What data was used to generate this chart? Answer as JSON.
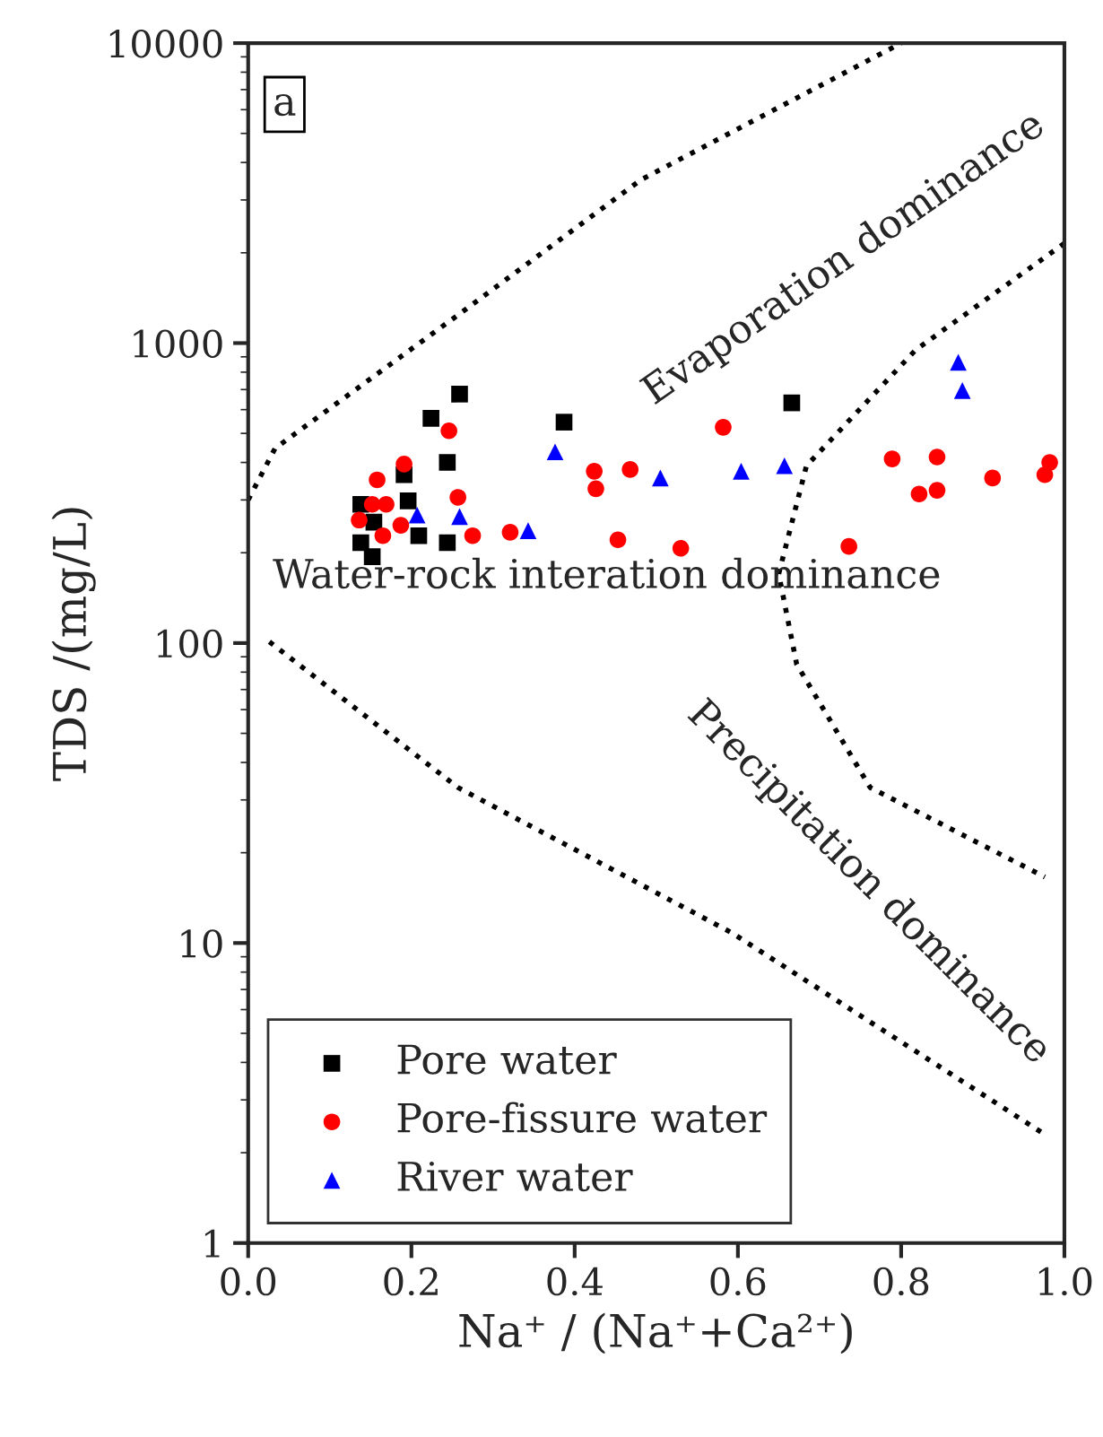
{
  "chart_data": {
    "type": "scatter",
    "xlabel": "Na⁺ / (Na⁺+Ca²⁺)",
    "ylabel": "TDS /(mg/L)",
    "xlim": [
      0,
      1
    ],
    "ylim": [
      1,
      10000
    ],
    "log": "y",
    "grid": false,
    "legend": "bottom left",
    "xticks": [
      {
        "value": 0,
        "label": "0.0"
      },
      {
        "value": 0.2,
        "label": "0.2"
      },
      {
        "value": 0.4,
        "label": "0.4"
      },
      {
        "value": 0.6,
        "label": "0.6"
      },
      {
        "value": 0.8,
        "label": "0.8"
      },
      {
        "value": 1,
        "label": "1.0"
      }
    ],
    "yticks": [
      1,
      10,
      100,
      1000,
      10000
    ],
    "annotations": [
      "a",
      "Evaporation dominance",
      "Water-rock interation dominance",
      "Precipitation dominance"
    ],
    "series": [
      {
        "name": "Pore water",
        "color": "#000000",
        "marker": "square",
        "x": [
          0.259,
          0.224,
          0.244,
          0.191,
          0.196,
          0.138,
          0.154,
          0.209,
          0.138,
          0.152,
          0.244,
          0.387,
          0.666
        ],
        "values": [
          676,
          561,
          400,
          364,
          298,
          290,
          253,
          228,
          216,
          194,
          216,
          545,
          632
        ]
      },
      {
        "name": "Pore-fissure water",
        "color": "#ff0000",
        "marker": "circle",
        "x": [
          0.246,
          0.191,
          0.158,
          0.257,
          0.152,
          0.169,
          0.136,
          0.165,
          0.187,
          0.275,
          0.321,
          0.582,
          0.424,
          0.426,
          0.468,
          0.453,
          0.53,
          0.736,
          0.789,
          0.844,
          0.822,
          0.844,
          0.912,
          0.976,
          0.982
        ],
        "values": [
          510,
          395,
          350,
          306,
          290,
          290,
          257,
          228,
          247,
          228,
          234,
          524,
          374,
          327,
          379,
          221,
          207,
          210,
          411,
          417,
          314,
          323,
          355,
          364,
          400
        ]
      },
      {
        "name": "River water",
        "color": "#0000ff",
        "marker": "triangle",
        "x": [
          0.207,
          0.259,
          0.343,
          0.376,
          0.505,
          0.604,
          0.657,
          0.87,
          0.875
        ],
        "values": [
          267,
          264,
          237,
          434,
          355,
          374,
          390,
          863,
          695
        ]
      },
      {
        "type": "line",
        "color": "#000000",
        "marker": "none",
        "line_style": "dotted",
        "x": [
          0,
          0.033,
          0.257,
          0.481,
          0.8
        ],
        "values": [
          300,
          446,
          1240,
          3500,
          10000
        ]
      },
      {
        "type": "line",
        "color": "#000000",
        "marker": "none",
        "line_style": "dotted",
        "x": [
          1,
          0.818,
          0.684,
          0.65,
          0.672,
          0.762,
          0.976
        ],
        "values": [
          2150,
          950,
          390,
          170,
          85,
          33,
          16.6
        ]
      },
      {
        "type": "line",
        "color": "#000000",
        "marker": "none",
        "line_style": "dotted",
        "x": [
          0.026,
          0.257,
          0.593,
          0.976
        ],
        "values": [
          101,
          33,
          10.8,
          2.3
        ]
      }
    ]
  }
}
